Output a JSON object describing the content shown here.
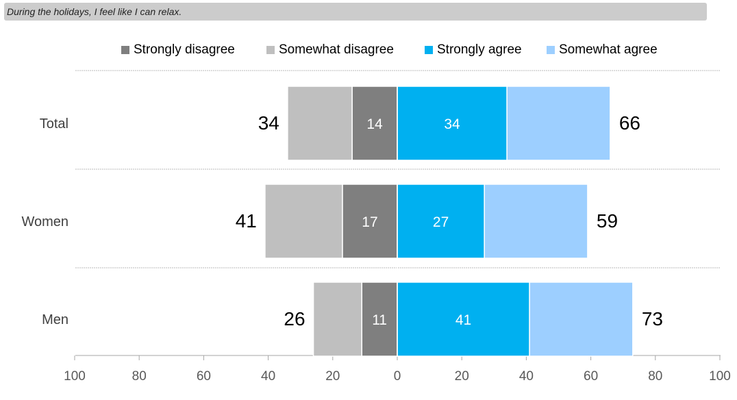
{
  "chart_data": {
    "type": "bar",
    "orientation": "horizontal",
    "stacked": true,
    "diverging": true,
    "title": "During the holidays, I feel like I can relax.",
    "categories": [
      "Total",
      "Women",
      "Men"
    ],
    "series": [
      {
        "name": "Strongly disagree",
        "values": [
          14,
          17,
          11
        ],
        "color": "#7f7f7f",
        "side": "negative"
      },
      {
        "name": "Somewhat disagree",
        "values": [
          20,
          24,
          15
        ],
        "color": "#bfbfbf",
        "side": "negative"
      },
      {
        "name": "Strongly agree",
        "values": [
          34,
          27,
          41
        ],
        "color": "#00b0f0",
        "side": "positive"
      },
      {
        "name": "Somewhat agree",
        "values": [
          32,
          32,
          32
        ],
        "color": "#9dcfff",
        "side": "positive"
      }
    ],
    "disagree_totals": [
      34,
      41,
      26
    ],
    "agree_totals": [
      66,
      59,
      73
    ],
    "inner_labels": {
      "Strongly disagree": [
        14,
        17,
        11
      ],
      "Strongly agree": [
        34,
        27,
        41
      ]
    },
    "x_ticks": [
      "100",
      "80",
      "60",
      "40",
      "20",
      "0",
      "20",
      "40",
      "60",
      "80",
      "100"
    ],
    "xlim": [
      -100,
      100
    ],
    "legend_position": "top",
    "grid": false
  }
}
